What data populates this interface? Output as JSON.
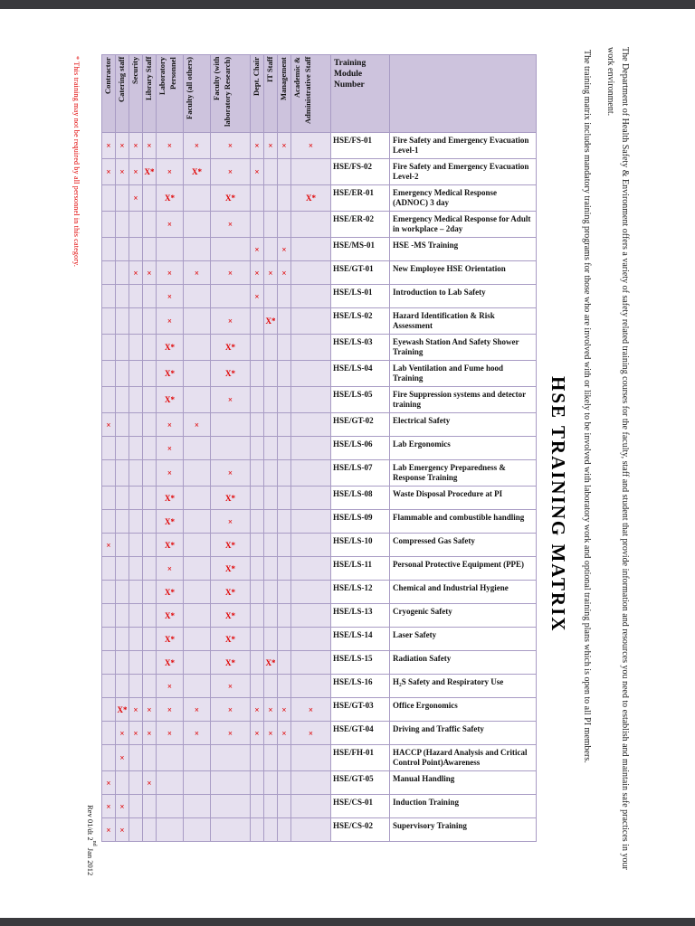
{
  "page": {
    "title": "HSE TRAINING MATRIX",
    "intro_paragraph_1": "The Department of Health Safety & Environment offers a variety of safety related training courses for the faculty, staff and student that provide information and resources you need to establish and maintain safe practices in your work environment.",
    "intro_paragraph_2": "The training matrix includes mandatory training programs for those who are involved with or likely to be involved with laboratory work and optional training plans which is open to all PI members.",
    "footnote": "* This training may not be required by all personnel in this category.",
    "revision": {
      "prefix": "Rev 01/dt 2",
      "sup": "nd",
      "suffix": " Jan 2012"
    }
  },
  "colors": {
    "header_bg": "#cdc3dd",
    "cell_tint": "#e6e0ef",
    "mark_red": "#e00000",
    "border": "#a89bc4"
  },
  "matrix": {
    "header": {
      "module_col": "Training Module Number",
      "staff_columns": [
        "Contractor",
        "Catering staff",
        "Security",
        "Library Staff",
        "Laboratory Personnel",
        "Faculty (all others)",
        "Faculty (with laboratory Research)",
        "Dept. Chair",
        "IT Staff",
        "Management",
        "Academic & Administrative Staff"
      ]
    },
    "rows": [
      {
        "module": "HSE/FS-01",
        "description": "Fire Safety and Emergency Evacuation Level-1",
        "marks": [
          "×",
          "×",
          "×",
          "×",
          "×",
          "×",
          "×",
          "×",
          "×",
          "×",
          "×"
        ]
      },
      {
        "module": "HSE/FS-02",
        "description": "Fire Safety and Emergency Evacuation Level-2",
        "marks": [
          "×",
          "×",
          "×",
          "X*",
          "×",
          "X*",
          "×",
          "×",
          "",
          "",
          ""
        ]
      },
      {
        "module": "HSE/ER-01",
        "description": "Emergency Medical Response (ADNOC) 3 day",
        "marks": [
          "",
          "",
          "×",
          "",
          "X*",
          "",
          "X*",
          "",
          "",
          "",
          "X*"
        ]
      },
      {
        "module": "HSE/ER-02",
        "description": "Emergency Medical Response for Adult in workplace – 2day",
        "marks": [
          "",
          "",
          "",
          "",
          "×",
          "",
          "×",
          "",
          "",
          "",
          ""
        ]
      },
      {
        "module": "HSE/MS-01",
        "description": "HSE -MS Training",
        "marks": [
          "",
          "",
          "",
          "",
          "",
          "",
          "",
          "×",
          "",
          "×",
          ""
        ]
      },
      {
        "module": "HSE/GT-01",
        "description": "New Employee HSE Orientation",
        "marks": [
          "",
          "",
          "×",
          "×",
          "×",
          "×",
          "×",
          "×",
          "×",
          "×",
          ""
        ]
      },
      {
        "module": "HSE/LS-01",
        "description": "Introduction to Lab Safety",
        "marks": [
          "",
          "",
          "",
          "",
          "×",
          "",
          "",
          "×",
          "",
          "",
          ""
        ]
      },
      {
        "module": "HSE/LS-02",
        "description": "Hazard Identification & Risk Assessment",
        "marks": [
          "",
          "",
          "",
          "",
          "×",
          "",
          "×",
          "",
          "X*",
          "",
          ""
        ]
      },
      {
        "module": "HSE/LS-03",
        "description": "Eyewash Station And Safety Shower Training",
        "marks": [
          "",
          "",
          "",
          "",
          "X*",
          "",
          "X*",
          "",
          "",
          "",
          ""
        ]
      },
      {
        "module": "HSE/LS-04",
        "description": "Lab Ventilation and Fume hood Training",
        "marks": [
          "",
          "",
          "",
          "",
          "X*",
          "",
          "X*",
          "",
          "",
          "",
          ""
        ]
      },
      {
        "module": "HSE/LS-05",
        "description": "Fire Suppression systems and detector training",
        "marks": [
          "",
          "",
          "",
          "",
          "X*",
          "",
          "×",
          "",
          "",
          "",
          ""
        ]
      },
      {
        "module": "HSE/GT-02",
        "description": "Electrical Safety",
        "marks": [
          "×",
          "",
          "",
          "",
          "×",
          "×",
          "",
          "",
          "",
          "",
          ""
        ]
      },
      {
        "module": "HSE/LS-06",
        "description": "Lab Ergonomics",
        "marks": [
          "",
          "",
          "",
          "",
          "×",
          "",
          "",
          "",
          "",
          "",
          ""
        ]
      },
      {
        "module": "HSE/LS-07",
        "description": "Lab Emergency Preparedness & Response Training",
        "marks": [
          "",
          "",
          "",
          "",
          "×",
          "",
          "×",
          "",
          "",
          "",
          ""
        ]
      },
      {
        "module": "HSE/LS-08",
        "description": "Waste Disposal Procedure at PI",
        "marks": [
          "",
          "",
          "",
          "",
          "X*",
          "",
          "X*",
          "",
          "",
          "",
          ""
        ]
      },
      {
        "module": "HSE/LS-09",
        "description": "Flammable and combustible handling",
        "marks": [
          "",
          "",
          "",
          "",
          "X*",
          "",
          "×",
          "",
          "",
          "",
          ""
        ]
      },
      {
        "module": "HSE/LS-10",
        "description": "Compressed Gas Safety",
        "marks": [
          "×",
          "",
          "",
          "",
          "X*",
          "",
          "X*",
          "",
          "",
          "",
          ""
        ]
      },
      {
        "module": "HSE/LS-11",
        "description": "Personal Protective Equipment (PPE)",
        "marks": [
          "",
          "",
          "",
          "",
          "×",
          "",
          "X*",
          "",
          "",
          "",
          ""
        ]
      },
      {
        "module": "HSE/LS-12",
        "description": "Chemical and Industrial Hygiene",
        "marks": [
          "",
          "",
          "",
          "",
          "X*",
          "",
          "X*",
          "",
          "",
          "",
          ""
        ]
      },
      {
        "module": "HSE/LS-13",
        "description": "Cryogenic Safety",
        "marks": [
          "",
          "",
          "",
          "",
          "X*",
          "",
          "X*",
          "",
          "",
          "",
          ""
        ]
      },
      {
        "module": "HSE/LS-14",
        "description": "Laser Safety",
        "marks": [
          "",
          "",
          "",
          "",
          "X*",
          "",
          "X*",
          "",
          "",
          "",
          ""
        ]
      },
      {
        "module": "HSE/LS-15",
        "description": "Radiation Safety",
        "marks": [
          "",
          "",
          "",
          "",
          "X*",
          "",
          "X*",
          "",
          "X*",
          "",
          ""
        ]
      },
      {
        "module": "HSE/LS-16",
        "description": "H₂S Safety and Respiratory Use",
        "marks": [
          "",
          "",
          "",
          "",
          "×",
          "",
          "×",
          "",
          "",
          "",
          ""
        ]
      },
      {
        "module": "HSE/GT-03",
        "description": "Office Ergonomics",
        "marks": [
          "",
          "X*",
          "×",
          "×",
          "×",
          "×",
          "×",
          "×",
          "×",
          "×",
          "×"
        ]
      },
      {
        "module": "HSE/GT-04",
        "description": "Driving and Traffic Safety",
        "marks": [
          "",
          "×",
          "×",
          "×",
          "×",
          "×",
          "×",
          "×",
          "×",
          "×",
          "×"
        ]
      },
      {
        "module": "HSE/FH-01",
        "description": "HACCP (Hazard Analysis and Critical Control Point)Awareness",
        "marks": [
          "",
          "×",
          "",
          "",
          "",
          "",
          "",
          "",
          "",
          "",
          ""
        ]
      },
      {
        "module": "HSE/GT-05",
        "description": "Manual Handling",
        "marks": [
          "×",
          "",
          "",
          "×",
          "",
          "",
          "",
          "",
          "",
          "",
          ""
        ]
      },
      {
        "module": "HSE/CS-01",
        "description": "Induction Training",
        "marks": [
          "×",
          "×",
          "",
          "",
          "",
          "",
          "",
          "",
          "",
          "",
          ""
        ]
      },
      {
        "module": "HSE/CS-02",
        "description": "Supervisory Training",
        "marks": [
          "×",
          "×",
          "",
          "",
          "",
          "",
          "",
          "",
          "",
          "",
          ""
        ]
      }
    ]
  }
}
